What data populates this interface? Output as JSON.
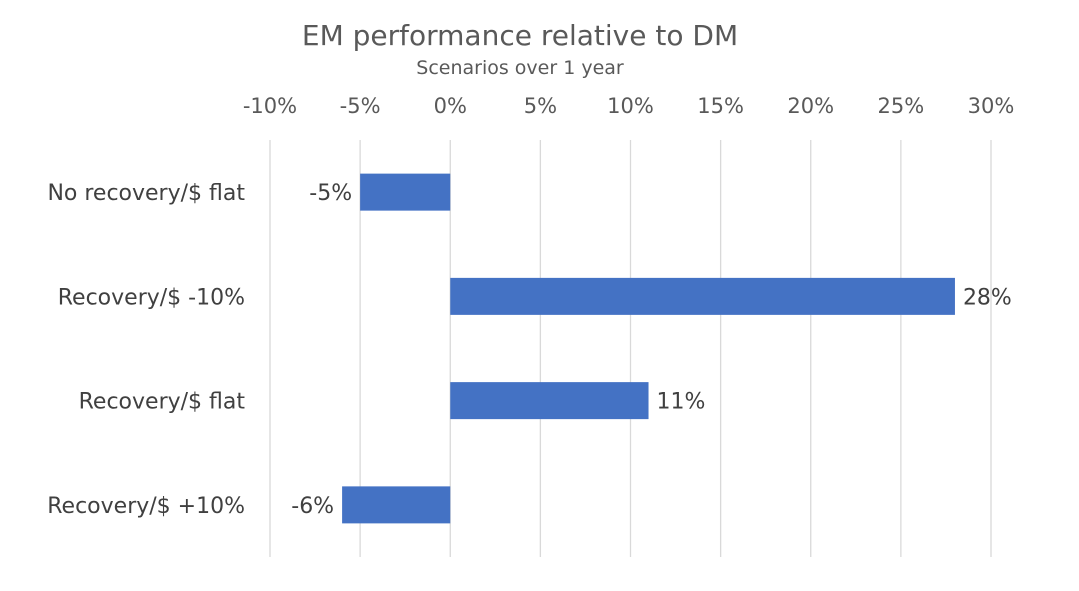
{
  "chart_data": {
    "type": "bar",
    "orientation": "horizontal",
    "title": "EM performance relative to DM",
    "subtitle": "Scenarios over 1 year",
    "xlabel": "",
    "ylabel": "",
    "categories": [
      "No recovery/$ flat",
      "Recovery/$ -10%",
      "Recovery/$ flat",
      "Recovery/$ +10%"
    ],
    "values": [
      -5,
      28,
      11,
      -6
    ],
    "data_labels": [
      "-5%",
      "28%",
      "11%",
      "-6%"
    ],
    "xlim": [
      -10,
      30
    ],
    "x_ticks": [
      -10,
      -5,
      0,
      5,
      10,
      15,
      20,
      25,
      30
    ],
    "x_tick_labels": [
      "-10%",
      "-5%",
      "0%",
      "5%",
      "10%",
      "15%",
      "20%",
      "25%",
      "30%"
    ],
    "x_axis_position": "top",
    "grid": true,
    "legend": "none",
    "bar_color": "#4472C4"
  }
}
